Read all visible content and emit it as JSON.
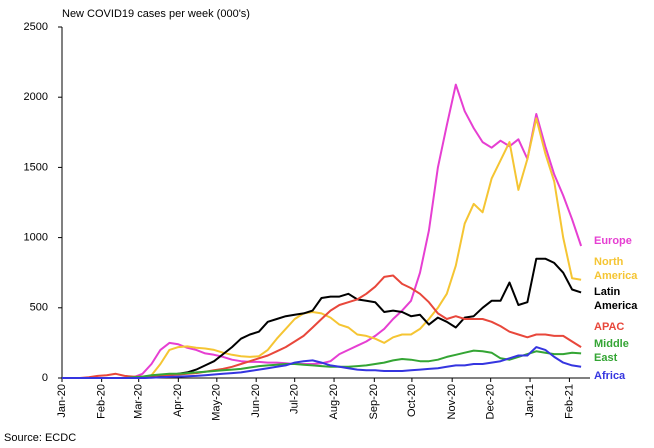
{
  "chart_data": {
    "type": "line",
    "title": "New COVID19 cases per week (000's)",
    "source": "Source: ECDC",
    "x": [
      0,
      1,
      2,
      3,
      4,
      5,
      6,
      7,
      8,
      9,
      10,
      11,
      12,
      13,
      14,
      15,
      16,
      17,
      18,
      19,
      20,
      21,
      22,
      23,
      24,
      25,
      26,
      27,
      28,
      29,
      30,
      31,
      32,
      33,
      34,
      35,
      36,
      37,
      38,
      39,
      40,
      41,
      42,
      43,
      44,
      45,
      46,
      47,
      48,
      49,
      50,
      51,
      52,
      53,
      54,
      55,
      56,
      57,
      58
    ],
    "xlim": [
      0,
      59
    ],
    "xticks": [
      {
        "value": 0,
        "label": "Jan-20"
      },
      {
        "value": 4.43,
        "label": "Feb-20"
      },
      {
        "value": 8.57,
        "label": "Mar-20"
      },
      {
        "value": 13,
        "label": "Apr-20"
      },
      {
        "value": 17.3,
        "label": "May-20"
      },
      {
        "value": 21.7,
        "label": "Jun-20"
      },
      {
        "value": 26,
        "label": "Jul-20"
      },
      {
        "value": 30.4,
        "label": "Aug-20"
      },
      {
        "value": 34.9,
        "label": "Sep-20"
      },
      {
        "value": 39.1,
        "label": "Oct-20"
      },
      {
        "value": 43.6,
        "label": "Nov-20"
      },
      {
        "value": 47.9,
        "label": "Dec-20"
      },
      {
        "value": 52.3,
        "label": "Jan-21"
      },
      {
        "value": 56.7,
        "label": "Feb-21"
      }
    ],
    "ylim": [
      0,
      2500
    ],
    "yticks": [
      0,
      500,
      1000,
      1500,
      2000,
      2500
    ],
    "grid": false,
    "series": [
      {
        "name": "Europe",
        "color": "#e63fd2",
        "values": [
          0,
          0,
          0,
          0,
          0,
          0,
          0,
          0,
          5,
          30,
          100,
          200,
          250,
          240,
          215,
          200,
          175,
          165,
          150,
          130,
          120,
          115,
          115,
          110,
          110,
          105,
          100,
          100,
          100,
          105,
          120,
          170,
          200,
          230,
          260,
          300,
          350,
          420,
          480,
          550,
          750,
          1050,
          1500,
          1800,
          2090,
          1900,
          1780,
          1680,
          1640,
          1690,
          1650,
          1700,
          1560,
          1880,
          1650,
          1450,
          1300,
          1130,
          940
        ]
      },
      {
        "name": "North America",
        "color": "#f5c533",
        "values": [
          0,
          0,
          0,
          0,
          0,
          0,
          0,
          0,
          0,
          5,
          20,
          100,
          200,
          220,
          225,
          215,
          210,
          200,
          180,
          165,
          155,
          150,
          155,
          200,
          280,
          350,
          420,
          460,
          470,
          460,
          430,
          380,
          360,
          310,
          300,
          280,
          250,
          290,
          310,
          310,
          350,
          420,
          500,
          600,
          800,
          1100,
          1240,
          1180,
          1420,
          1550,
          1680,
          1340,
          1560,
          1850,
          1600,
          1400,
          1000,
          710,
          700
        ]
      },
      {
        "name": "Latin America",
        "color": "#000000",
        "values": [
          0,
          0,
          0,
          0,
          0,
          0,
          0,
          0,
          0,
          0,
          5,
          10,
          20,
          30,
          40,
          60,
          90,
          120,
          170,
          220,
          280,
          310,
          330,
          400,
          420,
          440,
          450,
          460,
          480,
          570,
          580,
          580,
          600,
          560,
          550,
          540,
          470,
          480,
          470,
          440,
          450,
          380,
          430,
          400,
          360,
          430,
          440,
          500,
          550,
          550,
          680,
          520,
          540,
          850,
          850,
          820,
          750,
          630,
          610
        ]
      },
      {
        "name": "APAC",
        "color": "#e8473b",
        "values": [
          0,
          0,
          0,
          5,
          15,
          20,
          30,
          15,
          10,
          10,
          15,
          20,
          20,
          25,
          30,
          35,
          45,
          55,
          65,
          80,
          100,
          120,
          140,
          160,
          190,
          220,
          260,
          300,
          360,
          420,
          480,
          520,
          540,
          560,
          600,
          650,
          720,
          730,
          670,
          640,
          600,
          540,
          460,
          420,
          440,
          420,
          420,
          420,
          400,
          370,
          330,
          310,
          290,
          310,
          310,
          300,
          300,
          260,
          220
        ]
      },
      {
        "name": "Middle East",
        "color": "#34a534",
        "values": [
          0,
          0,
          0,
          0,
          0,
          0,
          0,
          0,
          5,
          10,
          20,
          25,
          30,
          30,
          35,
          40,
          45,
          50,
          55,
          60,
          65,
          75,
          85,
          90,
          95,
          100,
          100,
          95,
          90,
          85,
          80,
          80,
          80,
          85,
          90,
          100,
          110,
          125,
          135,
          130,
          120,
          120,
          130,
          150,
          165,
          180,
          195,
          190,
          180,
          140,
          130,
          150,
          170,
          190,
          180,
          170,
          170,
          180,
          175
        ]
      },
      {
        "name": "Africa",
        "color": "#3535e0",
        "values": [
          0,
          0,
          0,
          0,
          0,
          0,
          0,
          0,
          0,
          0,
          2,
          5,
          8,
          10,
          12,
          15,
          20,
          25,
          30,
          35,
          40,
          50,
          60,
          70,
          80,
          90,
          110,
          120,
          125,
          110,
          90,
          80,
          70,
          60,
          55,
          55,
          50,
          50,
          50,
          55,
          60,
          65,
          70,
          80,
          90,
          90,
          100,
          100,
          110,
          120,
          140,
          160,
          160,
          220,
          200,
          150,
          110,
          90,
          80
        ]
      }
    ]
  }
}
